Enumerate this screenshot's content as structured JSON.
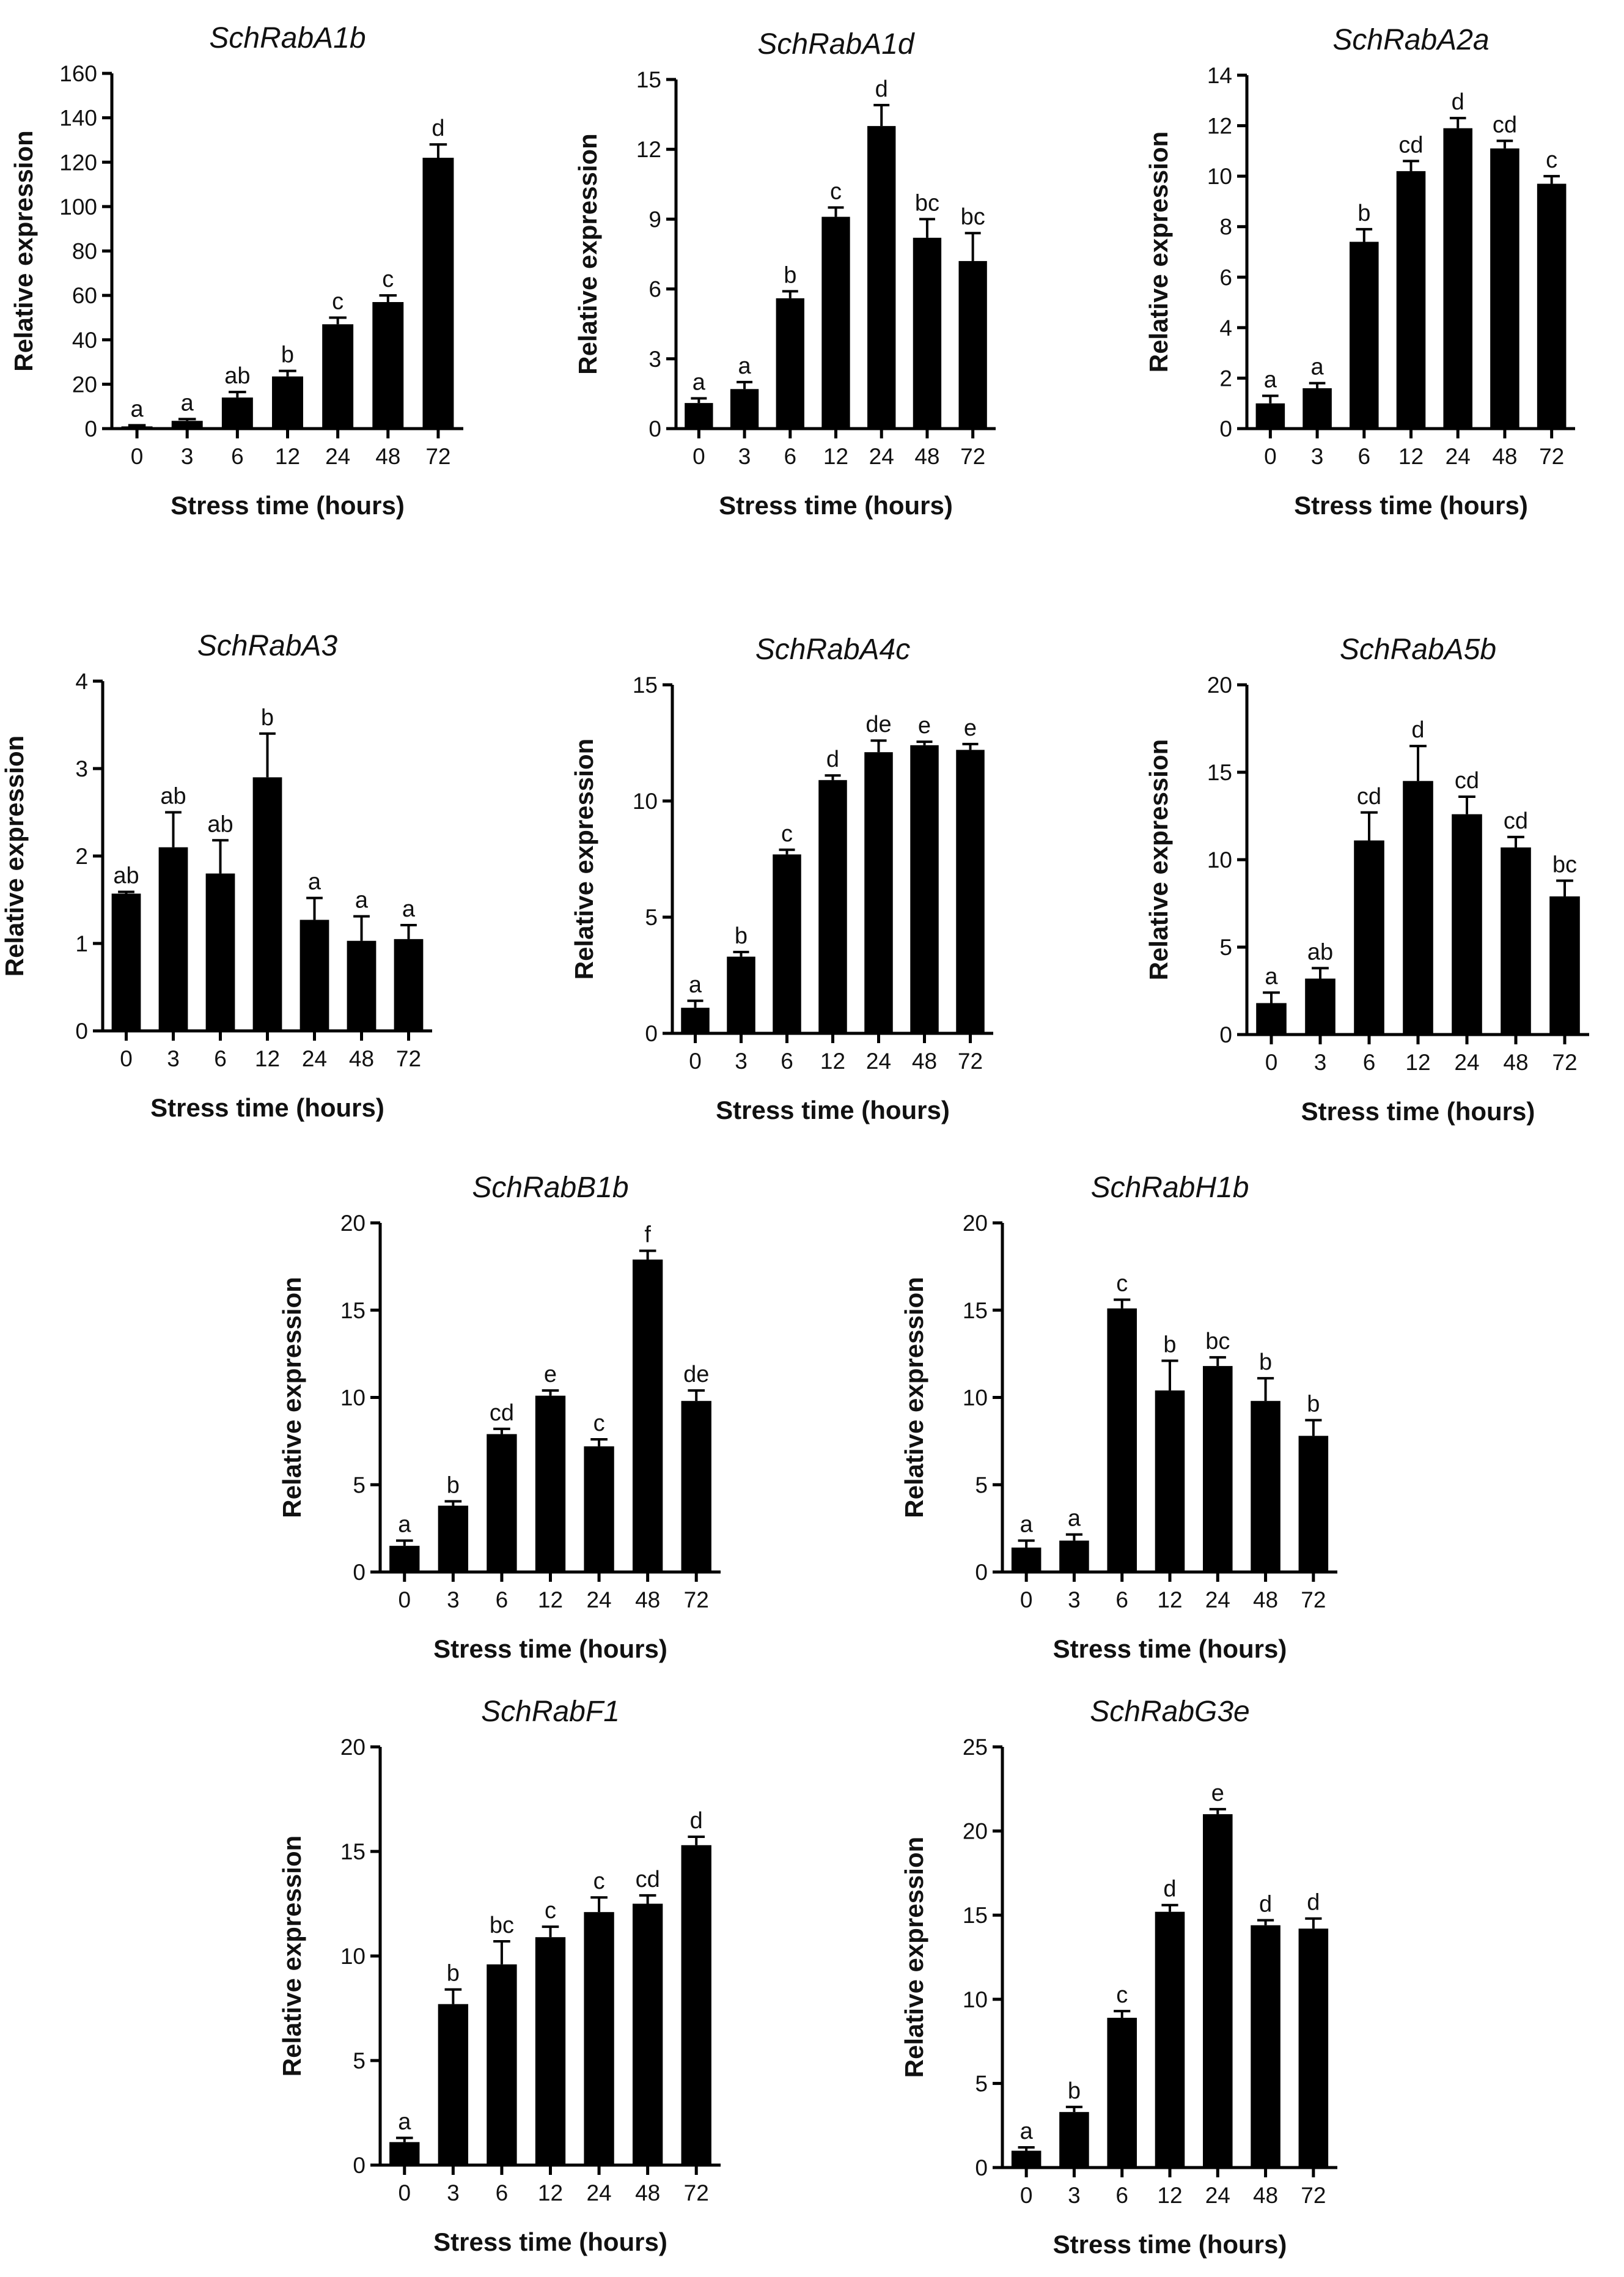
{
  "figure": {
    "x_label": "Stress time (hours)",
    "y_label": "Relative expression",
    "colors": {
      "bar": "#000000",
      "axis": "#000000",
      "text": "#111111"
    }
  },
  "chart_data": [
    {
      "type": "bar",
      "title": "SchRabA1b",
      "xlabel": "Stress time (hours)",
      "ylabel": "Relative expression",
      "categories": [
        "0",
        "3",
        "6",
        "12",
        "24",
        "48",
        "72"
      ],
      "values": [
        1,
        3.5,
        14,
        23.5,
        47,
        57,
        122
      ],
      "errors": [
        0.5,
        0.8,
        2.5,
        2.5,
        3,
        3,
        6
      ],
      "letters": [
        "a",
        "a",
        "ab",
        "b",
        "c",
        "c",
        "d"
      ],
      "ylim": [
        0,
        160
      ],
      "yticks": [
        0,
        20,
        40,
        60,
        80,
        100,
        120,
        140,
        160
      ]
    },
    {
      "type": "bar",
      "title": "SchRabA1d",
      "xlabel": "Stress time (hours)",
      "ylabel": "Relative expression",
      "categories": [
        "0",
        "3",
        "6",
        "12",
        "24",
        "48",
        "72"
      ],
      "values": [
        1.1,
        1.7,
        5.6,
        9.1,
        13.0,
        8.2,
        7.2
      ],
      "errors": [
        0.2,
        0.3,
        0.3,
        0.4,
        0.9,
        0.8,
        1.2
      ],
      "letters": [
        "a",
        "a",
        "b",
        "c",
        "d",
        "bc",
        "bc"
      ],
      "ylim": [
        0,
        15
      ],
      "yticks": [
        0,
        3,
        6,
        9,
        12,
        15
      ]
    },
    {
      "type": "bar",
      "title": "SchRabA2a",
      "xlabel": "Stress time (hours)",
      "ylabel": "Relative expression",
      "categories": [
        "0",
        "3",
        "6",
        "12",
        "24",
        "48",
        "72"
      ],
      "values": [
        1.0,
        1.6,
        7.4,
        10.2,
        11.9,
        11.1,
        9.7
      ],
      "errors": [
        0.3,
        0.2,
        0.5,
        0.4,
        0.4,
        0.3,
        0.3
      ],
      "letters": [
        "a",
        "a",
        "b",
        "cd",
        "d",
        "cd",
        "c"
      ],
      "ylim": [
        0,
        14
      ],
      "yticks": [
        0,
        2,
        4,
        6,
        8,
        10,
        12,
        14
      ]
    },
    {
      "type": "bar",
      "title": "SchRabA3",
      "xlabel": "Stress time (hours)",
      "ylabel": "Relative expression",
      "categories": [
        "0",
        "3",
        "6",
        "12",
        "24",
        "48",
        "72"
      ],
      "values": [
        1.57,
        2.1,
        1.8,
        2.9,
        1.27,
        1.03,
        1.05
      ],
      "errors": [
        0.02,
        0.4,
        0.38,
        0.5,
        0.25,
        0.28,
        0.16
      ],
      "letters": [
        "ab",
        "ab",
        "ab",
        "b",
        "a",
        "a",
        "a"
      ],
      "ylim": [
        0,
        4
      ],
      "yticks": [
        0,
        1,
        2,
        3,
        4
      ]
    },
    {
      "type": "bar",
      "title": "SchRabA4c",
      "xlabel": "Stress time (hours)",
      "ylabel": "Relative expression",
      "categories": [
        "0",
        "3",
        "6",
        "12",
        "24",
        "48",
        "72"
      ],
      "values": [
        1.1,
        3.3,
        7.7,
        10.9,
        12.1,
        12.4,
        12.2
      ],
      "errors": [
        0.3,
        0.2,
        0.2,
        0.2,
        0.5,
        0.15,
        0.25
      ],
      "letters": [
        "a",
        "b",
        "c",
        "d",
        "de",
        "e",
        "e"
      ],
      "ylim": [
        0,
        15
      ],
      "yticks": [
        0,
        5,
        10,
        15
      ]
    },
    {
      "type": "bar",
      "title": "SchRabA5b",
      "xlabel": "Stress time (hours)",
      "ylabel": "Relative expression",
      "categories": [
        "0",
        "3",
        "6",
        "12",
        "24",
        "48",
        "72"
      ],
      "values": [
        1.8,
        3.2,
        11.1,
        14.5,
        12.6,
        10.7,
        7.9
      ],
      "errors": [
        0.6,
        0.6,
        1.6,
        2.0,
        1.0,
        0.6,
        0.9
      ],
      "letters": [
        "a",
        "ab",
        "cd",
        "d",
        "cd",
        "cd",
        "bc"
      ],
      "ylim": [
        0,
        20
      ],
      "yticks": [
        0,
        5,
        10,
        15,
        20
      ]
    },
    {
      "type": "bar",
      "title": "SchRabB1b",
      "xlabel": "Stress time (hours)",
      "ylabel": "Relative expression",
      "categories": [
        "0",
        "3",
        "6",
        "12",
        "24",
        "48",
        "72"
      ],
      "values": [
        1.5,
        3.8,
        7.9,
        10.1,
        7.2,
        17.9,
        9.8
      ],
      "errors": [
        0.3,
        0.25,
        0.3,
        0.3,
        0.4,
        0.5,
        0.6
      ],
      "letters": [
        "a",
        "b",
        "cd",
        "e",
        "c",
        "f",
        "de"
      ],
      "ylim": [
        0,
        20
      ],
      "yticks": [
        0,
        5,
        10,
        15,
        20
      ]
    },
    {
      "type": "bar",
      "title": "SchRabH1b",
      "xlabel": "Stress time (hours)",
      "ylabel": "Relative expression",
      "categories": [
        "0",
        "3",
        "6",
        "12",
        "24",
        "48",
        "72"
      ],
      "values": [
        1.4,
        1.8,
        15.1,
        10.4,
        11.8,
        9.8,
        7.8
      ],
      "errors": [
        0.4,
        0.35,
        0.5,
        1.7,
        0.5,
        1.3,
        0.9
      ],
      "letters": [
        "a",
        "a",
        "c",
        "b",
        "bc",
        "b",
        "b"
      ],
      "ylim": [
        0,
        20
      ],
      "yticks": [
        0,
        5,
        10,
        15,
        20
      ]
    },
    {
      "type": "bar",
      "title": "SchRabF1",
      "xlabel": "Stress time (hours)",
      "ylabel": "Relative expression",
      "categories": [
        "0",
        "3",
        "6",
        "12",
        "24",
        "48",
        "72"
      ],
      "values": [
        1.1,
        7.7,
        9.6,
        10.9,
        12.1,
        12.5,
        15.3
      ],
      "errors": [
        0.2,
        0.7,
        1.1,
        0.5,
        0.7,
        0.4,
        0.4
      ],
      "letters": [
        "a",
        "b",
        "bc",
        "c",
        "c",
        "cd",
        "d"
      ],
      "ylim": [
        0,
        20
      ],
      "yticks": [
        0,
        5,
        10,
        15,
        20
      ]
    },
    {
      "type": "bar",
      "title": "SchRabG3e",
      "xlabel": "Stress time (hours)",
      "ylabel": "Relative expression",
      "categories": [
        "0",
        "3",
        "6",
        "12",
        "24",
        "48",
        "72"
      ],
      "values": [
        1.0,
        3.3,
        8.9,
        15.2,
        21.0,
        14.4,
        14.2
      ],
      "errors": [
        0.2,
        0.3,
        0.4,
        0.4,
        0.3,
        0.3,
        0.6
      ],
      "letters": [
        "a",
        "b",
        "c",
        "d",
        "e",
        "d",
        "d"
      ],
      "ylim": [
        0,
        25
      ],
      "yticks": [
        0,
        5,
        10,
        15,
        20,
        25
      ]
    }
  ]
}
